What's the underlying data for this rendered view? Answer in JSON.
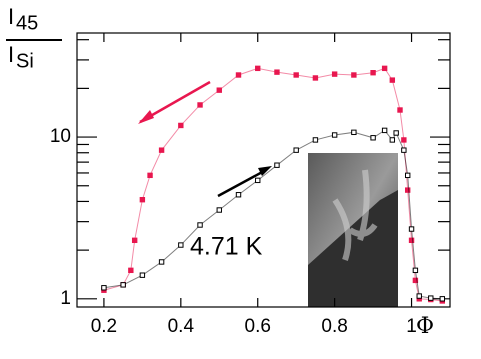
{
  "chart_data": {
    "type": "line",
    "log_y": true,
    "ylabel": {
      "top": {
        "main": "I",
        "sub": "45"
      },
      "bottom": {
        "main": "I",
        "sub": "Si"
      }
    },
    "xlabel": "Φ",
    "annotation": "4.71 K",
    "xlim": [
      0.13,
      1.1
    ],
    "ylim": [
      0.89,
      44
    ],
    "xticks": [
      0.2,
      0.4,
      0.6,
      0.8,
      1
    ],
    "yticks": [
      1,
      10
    ],
    "yminor": [
      2,
      3,
      4,
      5,
      6,
      7,
      8,
      9,
      20,
      30,
      40
    ],
    "series": [
      {
        "color": "#e8174f",
        "marker": "filled",
        "x": [
          0.2,
          0.25,
          0.27,
          0.28,
          0.3,
          0.32,
          0.35,
          0.4,
          0.45,
          0.5,
          0.55,
          0.6,
          0.65,
          0.7,
          0.75,
          0.8,
          0.85,
          0.9,
          0.93,
          0.95,
          0.97,
          0.98,
          0.99,
          1.0,
          1.01,
          1.02,
          1.05,
          1.08
        ],
        "values": [
          1.13,
          1.22,
          1.5,
          2.3,
          4.1,
          5.8,
          8.3,
          11.8,
          15.8,
          19.5,
          24.2,
          26.6,
          25.2,
          24.2,
          23.2,
          24.5,
          24.2,
          25,
          26.6,
          22.5,
          14.7,
          9.6,
          4.7,
          2.3,
          1.3,
          1.0,
          0.99,
          0.97
        ]
      },
      {
        "color": "#000000",
        "marker": "open",
        "x": [
          0.2,
          0.25,
          0.3,
          0.35,
          0.4,
          0.45,
          0.5,
          0.55,
          0.6,
          0.65,
          0.7,
          0.75,
          0.8,
          0.85,
          0.9,
          0.93,
          0.95,
          0.96,
          0.98,
          0.99,
          1.0,
          1.01,
          1.02,
          1.05,
          1.08
        ],
        "values": [
          1.17,
          1.22,
          1.4,
          1.69,
          2.15,
          2.86,
          3.54,
          4.4,
          5.4,
          6.7,
          8.3,
          9.6,
          10.3,
          10.7,
          9.9,
          11,
          9.6,
          10.6,
          8.3,
          5.8,
          2.7,
          1.5,
          1.04,
          1.01,
          1.0
        ]
      }
    ]
  }
}
